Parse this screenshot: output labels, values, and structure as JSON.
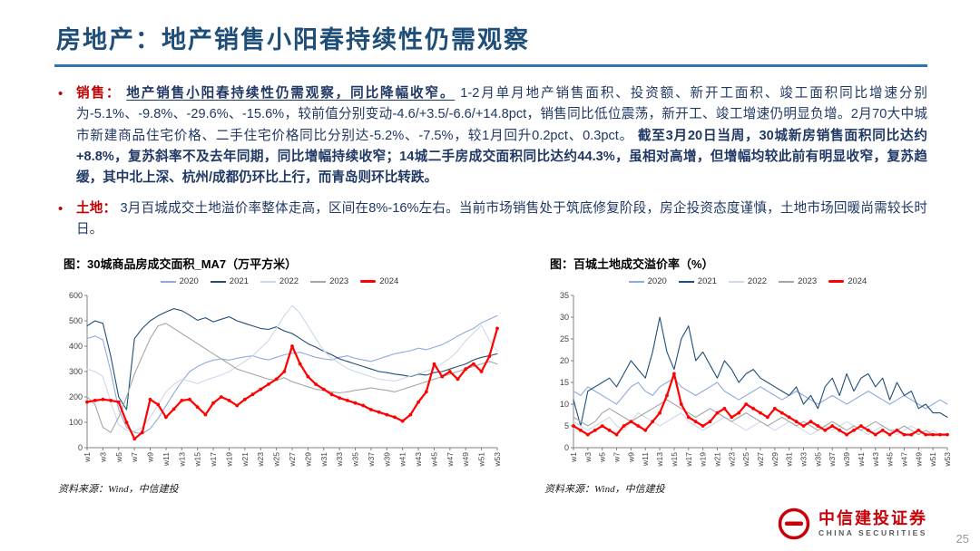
{
  "slide": {
    "title": "房地产：地产销售小阳春持续性仍需观察",
    "page_number": "25",
    "colors": {
      "title": "#1F4E79",
      "title_rule": "#2E74B5",
      "bullet_accent": "#C00000",
      "body_text": "#203864",
      "logo_red": "#C8000A"
    },
    "bullets": [
      {
        "label": "销售：",
        "segments": [
          {
            "text": "地产销售小阳春持续性仍需观察，同比降幅收窄。",
            "style": "bold-underline"
          },
          {
            "text": "1-2月单月地产销售面积、投资额、新开工面积、竣工面积同比增速分别为-5.1%、-9.8%、-29.6%、-15.6%，较前值分别变动-4.6/+3.5/-6.6/+14.8pct，销售同比低位震荡，新开工、竣工增速仍明显负增。2月70大中城市新建商品住宅价格、二手住宅价格同比分别达-5.2%、-7.5%，较1月回升0.2pct、0.3pct。",
            "style": "normal"
          },
          {
            "text": "截至3月20日当周，30城新房销售面积同比达约+8.8%，复苏斜率不及去年同期，同比增幅持续收窄；14城二手房成交面积同比达约44.3%，虽相对高增，但增幅均较此前有明显收窄，复苏趋缓，其中北上深、杭州/成都仍环比上行，而青岛则环比转跌。",
            "style": "bold"
          }
        ]
      },
      {
        "label": "土地：",
        "segments": [
          {
            "text": "3月百城成交土地溢价率整体走高，区间在8%-16%左右。当前市场销售处于筑底修复阶段，房企投资态度谨慎，土地市场回暖尚需较长时日。",
            "style": "normal"
          }
        ]
      }
    ],
    "sources": {
      "left": "资料来源：Wind，中信建投",
      "right": "资料来源：Wind，中信建投"
    },
    "logo": {
      "cn": "中信建投证券",
      "en": "CHINA SECURITIES"
    }
  },
  "chart_data": [
    {
      "type": "line",
      "title": "图：30城商品房成交面积_MA7（万平方米）",
      "xlabel": "week",
      "ylabel": "万平方米",
      "ylim": [
        0,
        600
      ],
      "ytick_step": 100,
      "grid": false,
      "legend_position": "top",
      "x_tick_labels": [
        "w1",
        "w3",
        "w5",
        "w7",
        "w9",
        "w11",
        "w13",
        "w15",
        "w17",
        "w19",
        "w21",
        "w23",
        "w25",
        "w27",
        "w29",
        "w31",
        "w33",
        "w35",
        "w37",
        "w39",
        "w41",
        "w43",
        "w45",
        "w47",
        "w49",
        "w51",
        "w53"
      ],
      "series": [
        {
          "name": "2020",
          "color": "#8FAADC",
          "values": [
            430,
            440,
            425,
            300,
            150,
            80,
            60,
            55,
            75,
            115,
            165,
            215,
            260,
            300,
            320,
            335,
            345,
            350,
            345,
            352,
            358,
            362,
            352,
            346,
            356,
            366,
            372,
            376,
            366,
            356,
            350,
            346,
            356,
            362,
            352,
            346,
            340,
            350,
            360,
            370,
            376,
            382,
            392,
            386,
            396,
            406,
            422,
            440,
            456,
            470,
            492,
            506,
            520
          ]
        },
        {
          "name": "2021",
          "color": "#1F4E79",
          "values": [
            480,
            500,
            490,
            360,
            200,
            150,
            430,
            470,
            500,
            520,
            535,
            548,
            540,
            522,
            502,
            512,
            496,
            506,
            516,
            500,
            490,
            480,
            470,
            466,
            476,
            460,
            450,
            430,
            410,
            396,
            380,
            366,
            350,
            340,
            330,
            320,
            310,
            300,
            296,
            290,
            286,
            280,
            290,
            286,
            296,
            300,
            310,
            320,
            330,
            346,
            356,
            362,
            370
          ]
        },
        {
          "name": "2022",
          "color": "#CDD9EA",
          "values": [
            310,
            300,
            280,
            180,
            90,
            70,
            65,
            80,
            120,
            170,
            220,
            250,
            270,
            262,
            252,
            266,
            276,
            286,
            300,
            320,
            340,
            362,
            392,
            422,
            470,
            520,
            560,
            530,
            480,
            430,
            382,
            352,
            332,
            312,
            300,
            290,
            280,
            270,
            266,
            262,
            272,
            282,
            292,
            302,
            312,
            332,
            352,
            382,
            422,
            452,
            482,
            422,
            380
          ]
        },
        {
          "name": "2023",
          "color": "#A6A6A6",
          "values": [
            200,
            170,
            80,
            60,
            120,
            200,
            290,
            360,
            430,
            480,
            490,
            470,
            450,
            430,
            410,
            390,
            370,
            350,
            330,
            310,
            300,
            290,
            280,
            270,
            266,
            276,
            260,
            250,
            240,
            230,
            226,
            220,
            216,
            220,
            226,
            230,
            236,
            230,
            226,
            220,
            230,
            240,
            250,
            260,
            270,
            280,
            290,
            300,
            310,
            320,
            330,
            340,
            330
          ]
        },
        {
          "name": "2024",
          "color": "#FF0000",
          "marker": true,
          "width": 2.2,
          "values": [
            180,
            186,
            190,
            186,
            180,
            100,
            35,
            60,
            190,
            170,
            120,
            152,
            186,
            190,
            160,
            130,
            176,
            200,
            186,
            166,
            190,
            210,
            230,
            250,
            270,
            300,
            400,
            330,
            280,
            250,
            230,
            210,
            196,
            186,
            176,
            166,
            150,
            140,
            130,
            120,
            105,
            130,
            180,
            220,
            330,
            280,
            300,
            270,
            310,
            330,
            300,
            360,
            470
          ]
        }
      ]
    },
    {
      "type": "line",
      "title": "图：百城土地成交溢价率（%）",
      "xlabel": "week",
      "ylabel": "%",
      "ylim": [
        0,
        35
      ],
      "ytick_step": 5,
      "grid": false,
      "legend_position": "top",
      "x_tick_labels": [
        "w1",
        "w3",
        "w5",
        "w7",
        "w9",
        "w11",
        "w13",
        "w15",
        "w17",
        "w19",
        "w21",
        "w23",
        "w25",
        "w27",
        "w29",
        "w31",
        "w33",
        "w35",
        "w37",
        "w39",
        "w41",
        "w43",
        "w45",
        "w47",
        "w49",
        "w51",
        "w53"
      ],
      "series": [
        {
          "name": "2020",
          "color": "#8FAADC",
          "values": [
            13,
            12,
            14,
            13,
            12,
            11,
            10,
            12,
            14,
            15,
            13,
            12,
            14,
            15,
            16,
            14,
            13,
            12,
            13,
            14,
            15,
            13,
            12,
            11,
            12,
            13,
            14,
            13,
            12,
            11,
            12,
            13,
            12,
            11,
            10,
            11,
            12,
            11,
            10,
            11,
            12,
            13,
            12,
            11,
            10,
            11,
            12,
            11,
            10,
            9,
            10,
            11,
            10
          ]
        },
        {
          "name": "2021",
          "color": "#1F4E79",
          "values": [
            11,
            5,
            13,
            14,
            15,
            16,
            14,
            17,
            20,
            18,
            16,
            22,
            30,
            22,
            18,
            25,
            28,
            20,
            22,
            19,
            16,
            20,
            18,
            15,
            17,
            18,
            16,
            15,
            14,
            13,
            12,
            14,
            10,
            12,
            9,
            14,
            16,
            12,
            17,
            13,
            16,
            17,
            14,
            16,
            11,
            15,
            12,
            13,
            9,
            10,
            8,
            8,
            7
          ]
        },
        {
          "name": "2022",
          "color": "#CDD9EA",
          "values": [
            6,
            5,
            4,
            5,
            6,
            7,
            5,
            4,
            6,
            8,
            7,
            6,
            5,
            6,
            7,
            8,
            6,
            5,
            4,
            5,
            6,
            7,
            6,
            5,
            4,
            5,
            6,
            5,
            4,
            5,
            6,
            5,
            4,
            3,
            4,
            5,
            4,
            5,
            6,
            5,
            4,
            3,
            4,
            5,
            4,
            3,
            4,
            5,
            4,
            3,
            4,
            3,
            3
          ]
        },
        {
          "name": "2023",
          "color": "#A6A6A6",
          "values": [
            7,
            6,
            5,
            6,
            8,
            9,
            8,
            7,
            6,
            7,
            8,
            9,
            10,
            11,
            10,
            9,
            8,
            7,
            8,
            9,
            8,
            7,
            6,
            7,
            8,
            7,
            6,
            5,
            6,
            7,
            6,
            5,
            6,
            5,
            4,
            5,
            6,
            5,
            4,
            5,
            4,
            5,
            6,
            5,
            4,
            4,
            5,
            4,
            3,
            4,
            3,
            3,
            3
          ]
        },
        {
          "name": "2024",
          "color": "#FF0000",
          "marker": true,
          "width": 2.2,
          "values": [
            5,
            4,
            3,
            4,
            5,
            4,
            3,
            5,
            6,
            5,
            4,
            6,
            8,
            12,
            17,
            10,
            7,
            6,
            5,
            6,
            8,
            9,
            7,
            8,
            10,
            9,
            8,
            7,
            9,
            8,
            7,
            6,
            5,
            6,
            5,
            4,
            5,
            4,
            3,
            4,
            5,
            4,
            3,
            4,
            3,
            4,
            3,
            3,
            4,
            3,
            3,
            3,
            3
          ]
        }
      ]
    }
  ]
}
